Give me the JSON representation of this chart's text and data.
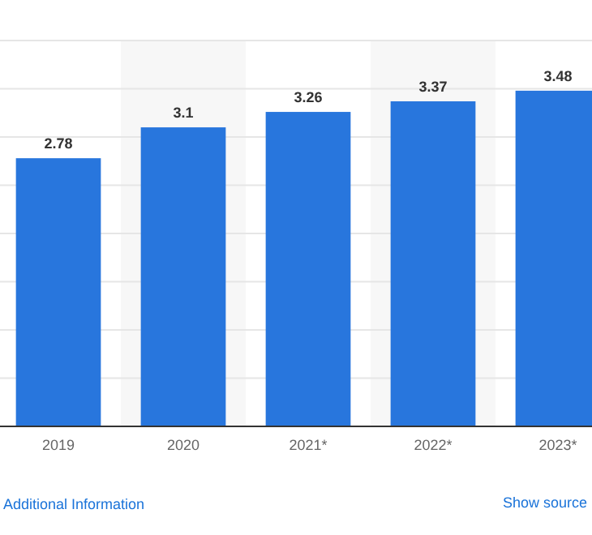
{
  "chart_data": {
    "type": "bar",
    "categories": [
      "2019",
      "2020",
      "2021*",
      "2022*",
      "2023*"
    ],
    "values": [
      2.78,
      3.1,
      3.26,
      3.37,
      3.48
    ],
    "color": "#2876dd",
    "data_labels": true,
    "ylim": [
      0,
      4
    ],
    "yticks": [
      {
        "value": 0,
        "label": null
      },
      {
        "value": 0.5,
        "label": null
      },
      {
        "value": 1,
        "label": null
      },
      {
        "value": 1.5,
        "label": null
      },
      {
        "value": 2,
        "label": null
      },
      {
        "value": 2.5,
        "label": null
      },
      {
        "value": 3,
        "label": null
      },
      {
        "value": 3.5,
        "label": null
      },
      {
        "value": 4,
        "label": null
      }
    ],
    "grid": "y",
    "tick_labels": "x",
    "annotations": [
      "Additional Information",
      "Show source"
    ]
  }
}
